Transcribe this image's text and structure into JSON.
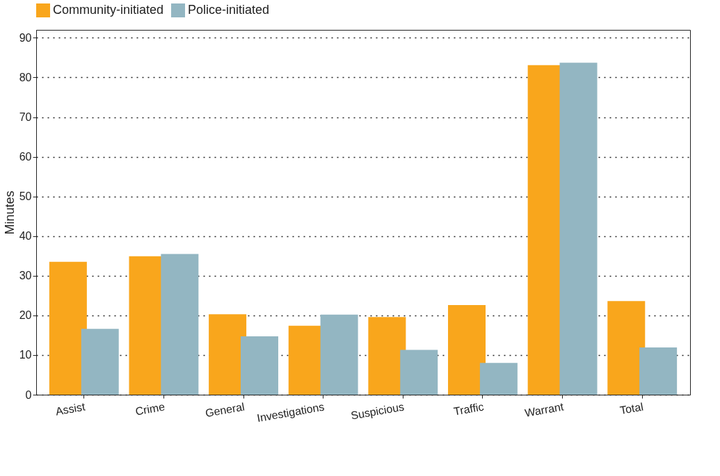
{
  "chart_data": {
    "type": "bar",
    "ylabel": "Minutes",
    "categories": [
      "Assist",
      "Crime",
      "General",
      "Investigations",
      "Suspicious",
      "Traffic",
      "Warrant",
      "Total"
    ],
    "series": [
      {
        "name": "Community-initiated",
        "color": "#f9a61c",
        "values": [
          33.5,
          34.9,
          20.3,
          17.4,
          19.6,
          22.6,
          83.1,
          23.6
        ]
      },
      {
        "name": "Police-initiated",
        "color": "#93b6c2",
        "values": [
          16.6,
          35.5,
          14.7,
          20.2,
          11.3,
          8.0,
          83.7,
          11.9
        ]
      }
    ],
    "ylim": [
      0,
      92
    ],
    "yticks": [
      0,
      10,
      20,
      30,
      40,
      50,
      60,
      70,
      80,
      90
    ],
    "grid": "y",
    "legend": "top"
  }
}
